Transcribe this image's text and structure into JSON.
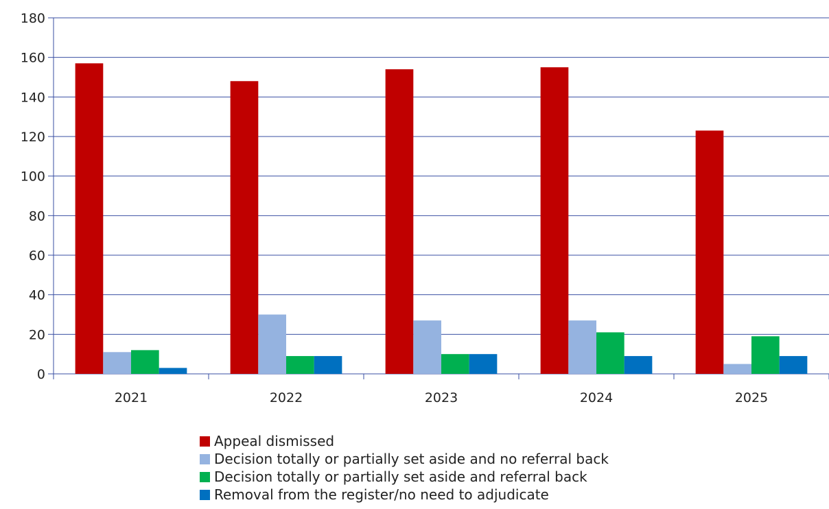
{
  "chart_data": {
    "type": "bar",
    "title": "",
    "xlabel": "",
    "ylabel": "",
    "categories": [
      "2021",
      "2022",
      "2023",
      "2024",
      "2025"
    ],
    "series": [
      {
        "name": "Appeal dismissed",
        "color": "#c00000",
        "values": [
          157,
          148,
          154,
          155,
          123
        ]
      },
      {
        "name": "Decision totally or partially set aside and no referral back",
        "color": "#95b3e0",
        "values": [
          11,
          30,
          27,
          27,
          5
        ]
      },
      {
        "name": "Decision totally or partially set aside and referral back",
        "color": "#00b050",
        "values": [
          12,
          9,
          10,
          21,
          19
        ]
      },
      {
        "name": "Removal from the register/no need to adjudicate",
        "color": "#0070c0",
        "values": [
          3,
          9,
          10,
          9,
          9
        ]
      }
    ],
    "ylim": [
      0,
      180
    ],
    "yticks": [
      0,
      20,
      40,
      60,
      80,
      100,
      120,
      140,
      160,
      180
    ],
    "grid": true,
    "legend_position": "bottom"
  }
}
